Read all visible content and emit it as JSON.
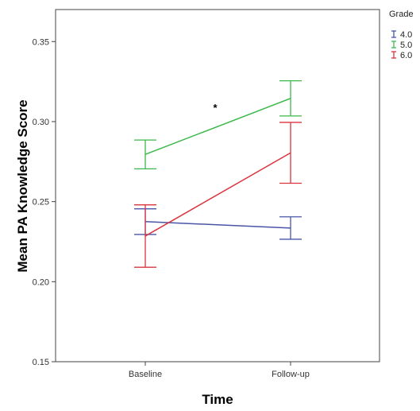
{
  "chart_data": {
    "type": "line",
    "x": [
      "Baseline",
      "Follow-up"
    ],
    "xlabel": "Time",
    "ylabel": "Mean PA Knowledge Score",
    "ylim": [
      0.15,
      0.37
    ],
    "yticks": [
      "0.15",
      "0.20",
      "0.25",
      "0.30",
      "0.35"
    ],
    "legend_title": "Grade",
    "legend_position": "right",
    "annotation": "*",
    "series": [
      {
        "name": "4.0",
        "color": "#4a55a8",
        "values": [
          0.2375,
          0.2335
        ],
        "err_low": [
          0.2295,
          0.2265
        ],
        "err_high": [
          0.2455,
          0.2405
        ]
      },
      {
        "name": "5.0",
        "color": "#3cb84a",
        "values": [
          0.2795,
          0.3145
        ],
        "err_low": [
          0.2705,
          0.3035
        ],
        "err_high": [
          0.2885,
          0.3255
        ]
      },
      {
        "name": "6.0",
        "color": "#d9343e",
        "values": [
          0.2285,
          0.2805
        ],
        "err_low": [
          0.209,
          0.2615
        ],
        "err_high": [
          0.248,
          0.2995
        ]
      }
    ]
  }
}
